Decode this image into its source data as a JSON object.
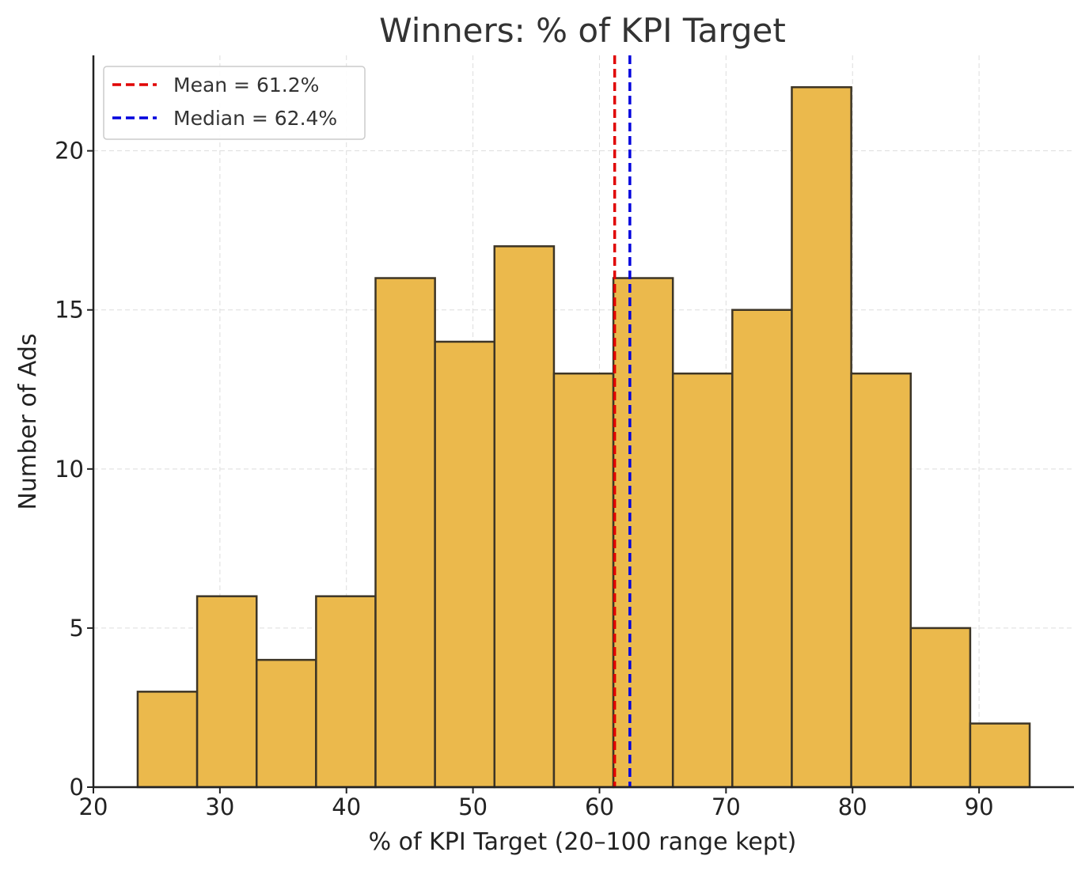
{
  "chart_data": {
    "type": "bar",
    "subtype": "histogram",
    "title": "Winners: % of KPI Target",
    "xlabel": "% of KPI Target (20–100 range kept)",
    "ylabel": "Number of Ads",
    "xlim": [
      20,
      97.5
    ],
    "ylim": [
      0,
      23
    ],
    "xticks": [
      20,
      30,
      40,
      50,
      60,
      70,
      80,
      90
    ],
    "yticks": [
      0,
      5,
      10,
      15,
      20
    ],
    "grid": true,
    "bin_start": 23.5,
    "bin_width": 4.7,
    "values": [
      3,
      6,
      4,
      6,
      16,
      14,
      17,
      13,
      16,
      13,
      15,
      22,
      13,
      5,
      2
    ],
    "bar_color": "#ebb94c",
    "bar_edge_color": "#3d3526",
    "reference_lines": [
      {
        "name": "Mean",
        "label": "Mean = 61.2%",
        "value": 61.2,
        "color": "#e00000"
      },
      {
        "name": "Median",
        "label": "Median = 62.4%",
        "value": 62.4,
        "color": "#0000dd"
      }
    ],
    "legend_position": "top-left"
  }
}
